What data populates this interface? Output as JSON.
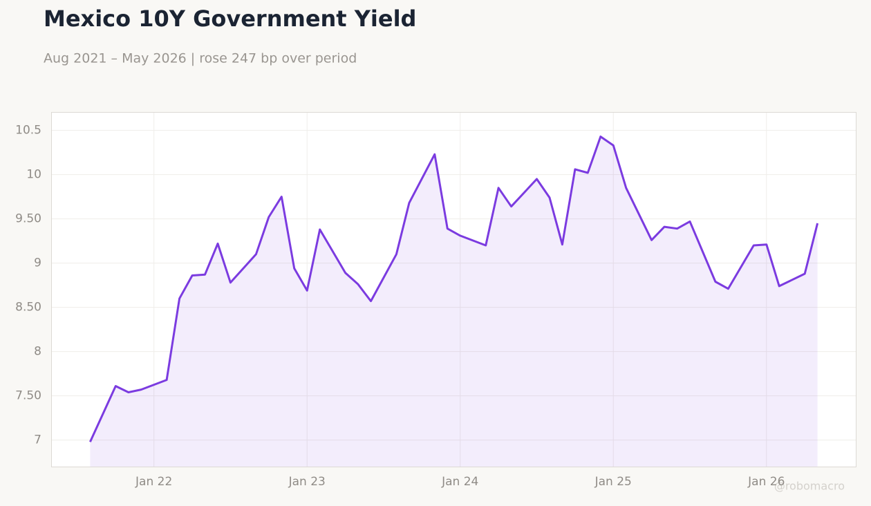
{
  "chart_data": {
    "type": "line",
    "title": "Mexico 10Y Government Yield",
    "subtitle": "Aug 2021 – May 2026 | rose 247 bp over period",
    "watermark": "@robomacro",
    "x": [
      "2021-08",
      "2021-10",
      "2021-11",
      "2021-12",
      "2022-02",
      "2022-03",
      "2022-04",
      "2022-05",
      "2022-06",
      "2022-07",
      "2022-09",
      "2022-10",
      "2022-11",
      "2022-12",
      "2023-01",
      "2023-02",
      "2023-04",
      "2023-05",
      "2023-06",
      "2023-08",
      "2023-09",
      "2023-11",
      "2023-12",
      "2024-01",
      "2024-03",
      "2024-04",
      "2024-05",
      "2024-07",
      "2024-08",
      "2024-09",
      "2024-10",
      "2024-11",
      "2024-12",
      "2025-01",
      "2025-02",
      "2025-04",
      "2025-05",
      "2025-06",
      "2025-07",
      "2025-09",
      "2025-10",
      "2025-12",
      "2026-01",
      "2026-02",
      "2026-04",
      "2026-05"
    ],
    "series": [
      {
        "name": "Mexico 10Y",
        "color": "#7b3be0",
        "values": [
          6.98,
          7.61,
          7.54,
          7.57,
          7.68,
          8.6,
          8.86,
          8.87,
          9.22,
          8.78,
          9.1,
          9.52,
          9.75,
          8.94,
          8.69,
          9.38,
          8.89,
          8.76,
          8.57,
          9.1,
          9.68,
          10.23,
          9.39,
          9.31,
          9.2,
          9.85,
          9.64,
          9.95,
          9.74,
          9.21,
          10.06,
          10.02,
          10.43,
          10.33,
          9.85,
          9.26,
          9.41,
          9.39,
          9.47,
          8.79,
          8.71,
          9.2,
          9.21,
          8.74,
          8.88,
          9.45
        ]
      }
    ],
    "xlim": [
      "2021-05",
      "2026-08"
    ],
    "xticks": [
      {
        "value": "2022-01",
        "label": "Jan 22"
      },
      {
        "value": "2023-01",
        "label": "Jan 23"
      },
      {
        "value": "2024-01",
        "label": "Jan 24"
      },
      {
        "value": "2025-01",
        "label": "Jan 25"
      },
      {
        "value": "2026-01",
        "label": "Jan 26"
      }
    ],
    "ylim": [
      6.7,
      10.7
    ],
    "yticks": [
      7,
      {
        "value": 7.5,
        "label": "7.50"
      },
      8,
      {
        "value": 8.5,
        "label": "8.50"
      },
      9,
      {
        "value": 9.5,
        "label": "9.50"
      },
      10,
      10.5
    ],
    "grid": true
  }
}
